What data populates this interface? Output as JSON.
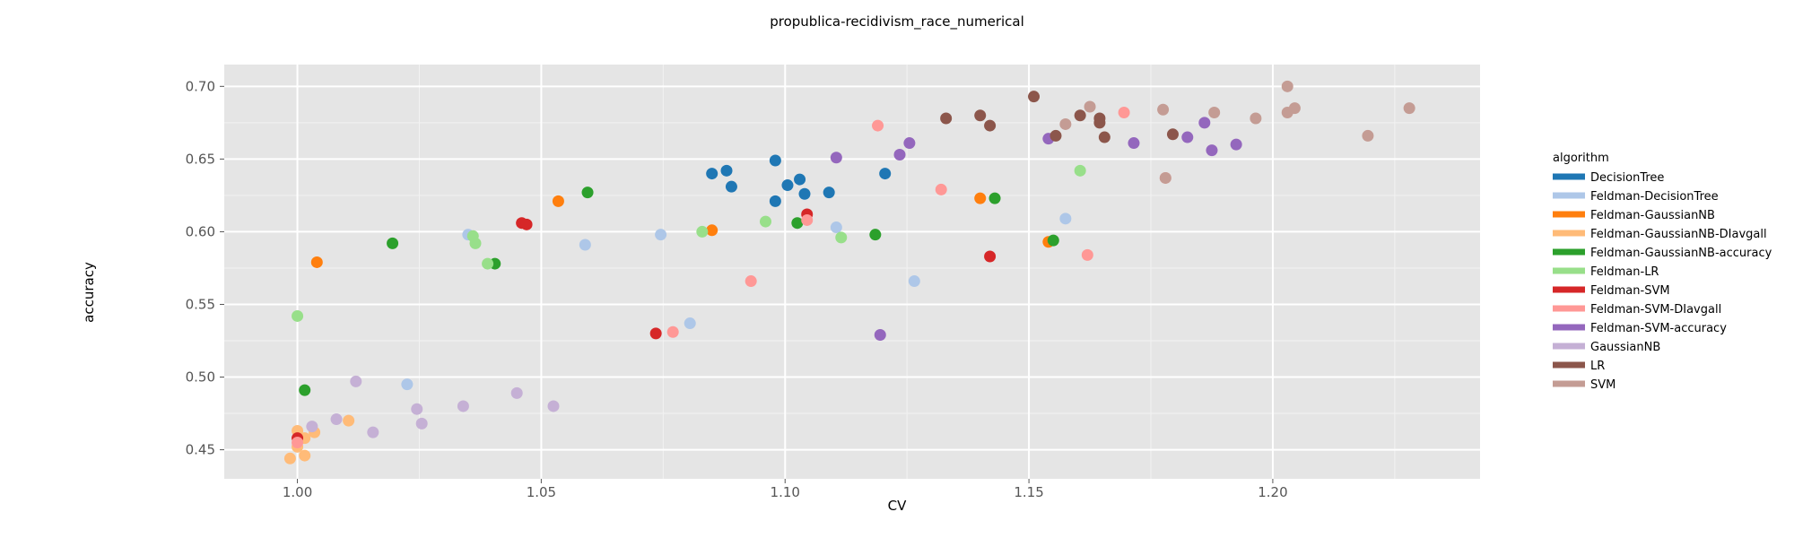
{
  "chart_data": {
    "type": "scatter",
    "title": "propublica-recidivism_race_numerical",
    "xlabel": "CV",
    "ylabel": "accuracy",
    "xlim": [
      0.985,
      1.2425
    ],
    "ylim": [
      0.43,
      0.715
    ],
    "xticks": [
      "1.00",
      "1.05",
      "1.10",
      "1.15",
      "1.20"
    ],
    "xtick_values": [
      1.0,
      1.05,
      1.1,
      1.15,
      1.2
    ],
    "yticks": [
      "0.45",
      "0.50",
      "0.55",
      "0.60",
      "0.65",
      "0.70"
    ],
    "ytick_values": [
      0.45,
      0.5,
      0.55,
      0.6,
      0.65,
      0.7
    ],
    "grid": true,
    "legend": {
      "title": "algorithm",
      "position": "right"
    },
    "series": [
      {
        "name": "DecisionTree",
        "color": "#1f77b4",
        "points": [
          [
            1.085,
            0.64
          ],
          [
            1.088,
            0.642
          ],
          [
            1.089,
            0.631
          ],
          [
            1.098,
            0.649
          ],
          [
            1.098,
            0.621
          ],
          [
            1.1005,
            0.632
          ],
          [
            1.103,
            0.636
          ],
          [
            1.104,
            0.626
          ],
          [
            1.109,
            0.627
          ],
          [
            1.1205,
            0.64
          ]
        ]
      },
      {
        "name": "Feldman-DecisionTree",
        "color": "#aec7e8",
        "points": [
          [
            1.0225,
            0.495
          ],
          [
            1.035,
            0.598
          ],
          [
            1.059,
            0.591
          ],
          [
            1.0745,
            0.598
          ],
          [
            1.0805,
            0.537
          ],
          [
            1.1105,
            0.603
          ],
          [
            1.1265,
            0.566
          ],
          [
            1.1575,
            0.609
          ]
        ]
      },
      {
        "name": "Feldman-GaussianNB",
        "color": "#ff7f0e",
        "points": [
          [
            1.004,
            0.579
          ],
          [
            1.0535,
            0.621
          ],
          [
            1.085,
            0.601
          ],
          [
            1.14,
            0.623
          ],
          [
            1.154,
            0.593
          ]
        ]
      },
      {
        "name": "Feldman-GaussianNB-DIavgall",
        "color": "#ffbb78",
        "points": [
          [
            0.9985,
            0.444
          ],
          [
            1.0,
            0.463
          ],
          [
            1.0,
            0.452
          ],
          [
            1.0015,
            0.458
          ],
          [
            1.0015,
            0.446
          ],
          [
            1.0035,
            0.462
          ],
          [
            1.0105,
            0.47
          ]
        ]
      },
      {
        "name": "Feldman-GaussianNB-accuracy",
        "color": "#2ca02c",
        "points": [
          [
            1.0015,
            0.491
          ],
          [
            1.0195,
            0.592
          ],
          [
            1.0405,
            0.578
          ],
          [
            1.0595,
            0.627
          ],
          [
            1.1025,
            0.606
          ],
          [
            1.1185,
            0.598
          ],
          [
            1.143,
            0.623
          ],
          [
            1.155,
            0.594
          ]
        ]
      },
      {
        "name": "Feldman-LR",
        "color": "#98df8a",
        "points": [
          [
            1.0,
            0.542
          ],
          [
            1.036,
            0.597
          ],
          [
            1.0365,
            0.592
          ],
          [
            1.039,
            0.578
          ],
          [
            1.083,
            0.6
          ],
          [
            1.096,
            0.607
          ],
          [
            1.1115,
            0.596
          ],
          [
            1.1605,
            0.642
          ]
        ]
      },
      {
        "name": "Feldman-SVM",
        "color": "#d62728",
        "points": [
          [
            1.0,
            0.458
          ],
          [
            1.046,
            0.606
          ],
          [
            1.047,
            0.605
          ],
          [
            1.0735,
            0.53
          ],
          [
            1.1045,
            0.612
          ],
          [
            1.142,
            0.583
          ]
        ]
      },
      {
        "name": "Feldman-SVM-DIavgall",
        "color": "#ff9896",
        "points": [
          [
            1.0,
            0.455
          ],
          [
            1.077,
            0.531
          ],
          [
            1.093,
            0.566
          ],
          [
            1.1045,
            0.608
          ],
          [
            1.119,
            0.673
          ],
          [
            1.132,
            0.629
          ],
          [
            1.162,
            0.584
          ],
          [
            1.1695,
            0.682
          ],
          [
            1.178,
            0.637
          ]
        ]
      },
      {
        "name": "Feldman-SVM-accuracy",
        "color": "#9467bd",
        "points": [
          [
            1.1105,
            0.651
          ],
          [
            1.1195,
            0.529
          ],
          [
            1.1235,
            0.653
          ],
          [
            1.1255,
            0.661
          ],
          [
            1.154,
            0.664
          ],
          [
            1.1715,
            0.661
          ],
          [
            1.1825,
            0.665
          ],
          [
            1.186,
            0.675
          ],
          [
            1.1875,
            0.656
          ],
          [
            1.1925,
            0.66
          ]
        ]
      },
      {
        "name": "GaussianNB",
        "color": "#c5b0d5",
        "points": [
          [
            1.003,
            0.466
          ],
          [
            1.008,
            0.471
          ],
          [
            1.012,
            0.497
          ],
          [
            1.0155,
            0.462
          ],
          [
            1.0245,
            0.478
          ],
          [
            1.0255,
            0.468
          ],
          [
            1.034,
            0.48
          ],
          [
            1.045,
            0.489
          ],
          [
            1.0525,
            0.48
          ]
        ]
      },
      {
        "name": "LR",
        "color": "#8c564b",
        "points": [
          [
            1.133,
            0.678
          ],
          [
            1.14,
            0.68
          ],
          [
            1.142,
            0.673
          ],
          [
            1.151,
            0.693
          ],
          [
            1.1555,
            0.666
          ],
          [
            1.1605,
            0.68
          ],
          [
            1.1645,
            0.675
          ],
          [
            1.1645,
            0.678
          ],
          [
            1.1655,
            0.665
          ],
          [
            1.1795,
            0.667
          ]
        ]
      },
      {
        "name": "SVM",
        "color": "#c49c94",
        "points": [
          [
            1.1575,
            0.674
          ],
          [
            1.1625,
            0.686
          ],
          [
            1.1775,
            0.684
          ],
          [
            1.178,
            0.637
          ],
          [
            1.188,
            0.682
          ],
          [
            1.1965,
            0.678
          ],
          [
            1.203,
            0.7
          ],
          [
            1.203,
            0.682
          ],
          [
            1.2045,
            0.685
          ],
          [
            1.2195,
            0.666
          ],
          [
            1.228,
            0.685
          ]
        ]
      }
    ]
  }
}
